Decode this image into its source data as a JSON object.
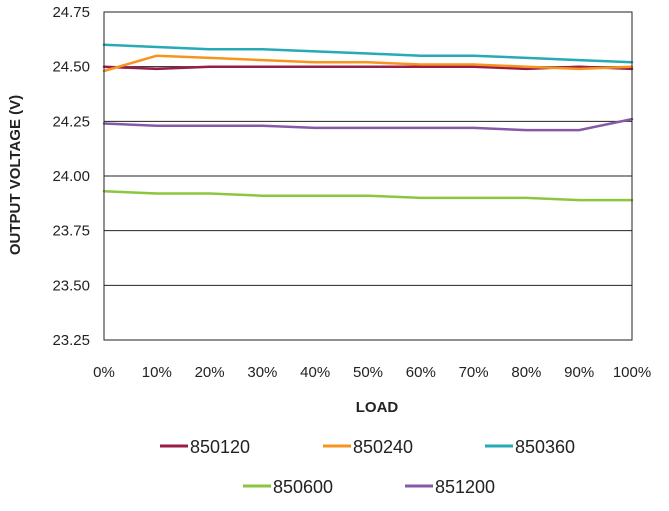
{
  "chart_data": {
    "type": "line",
    "title": "",
    "xlabel": "LOAD",
    "ylabel": "OUTPUT VOLTAGE (V)",
    "categories": [
      "0%",
      "10%",
      "20%",
      "30%",
      "40%",
      "50%",
      "60%",
      "70%",
      "80%",
      "90%",
      "100%"
    ],
    "ylim": [
      23.25,
      24.75
    ],
    "yticks": [
      "24.75",
      "24.50",
      "24.25",
      "24.00",
      "23.75",
      "23.50",
      "23.25"
    ],
    "grid": "horizontal",
    "legend_position": "bottom",
    "series": [
      {
        "name": "850120",
        "color": "#9b1b4a",
        "values": [
          24.5,
          24.49,
          24.5,
          24.5,
          24.5,
          24.5,
          24.5,
          24.5,
          24.49,
          24.5,
          24.49
        ]
      },
      {
        "name": "850240",
        "color": "#f7941d",
        "values": [
          24.48,
          24.55,
          24.54,
          24.53,
          24.52,
          24.52,
          24.51,
          24.51,
          24.5,
          24.49,
          24.5
        ]
      },
      {
        "name": "850360",
        "color": "#27aab5",
        "values": [
          24.6,
          24.59,
          24.58,
          24.58,
          24.57,
          24.56,
          24.55,
          24.55,
          24.54,
          24.53,
          24.52
        ]
      },
      {
        "name": "850600",
        "color": "#8cc63f",
        "values": [
          23.93,
          23.92,
          23.92,
          23.91,
          23.91,
          23.91,
          23.9,
          23.9,
          23.9,
          23.89,
          23.89
        ]
      },
      {
        "name": "851200",
        "color": "#8659a8",
        "values": [
          24.24,
          24.23,
          24.23,
          24.23,
          24.22,
          24.22,
          24.22,
          24.22,
          24.21,
          24.21,
          24.26
        ]
      }
    ]
  }
}
